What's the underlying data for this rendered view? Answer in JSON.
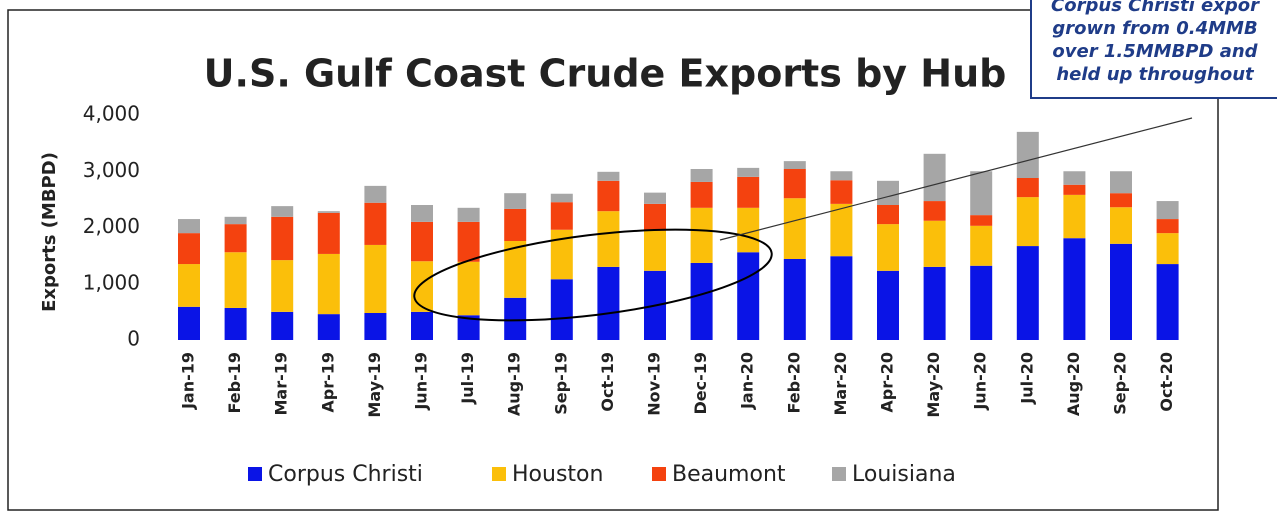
{
  "chart_data": {
    "type": "stacked_bar",
    "title": "U.S. Gulf Coast Crude Exports by Hub",
    "y_label": "Exports (MBPD)",
    "categories": [
      "Jan-19",
      "Feb-19",
      "Mar-19",
      "Apr-19",
      "May-19",
      "Jun-19",
      "Jul-19",
      "Aug-19",
      "Sep-19",
      "Oct-19",
      "Nov-19",
      "Dec-19",
      "Jan-20",
      "Feb-20",
      "Mar-20",
      "Apr-20",
      "May-20",
      "Jun-20",
      "Jul-20",
      "Aug-20",
      "Sep-20",
      "Oct-20"
    ],
    "series": [
      {
        "name": "Corpus Christi",
        "color": "#0a14e6",
        "values": [
          590,
          570,
          500,
          460,
          480,
          500,
          440,
          750,
          1080,
          1300,
          1230,
          1370,
          1560,
          1440,
          1490,
          1230,
          1300,
          1320,
          1670,
          1810,
          1710,
          1350
        ]
      },
      {
        "name": "Houston",
        "color": "#fbbf0a",
        "values": [
          760,
          990,
          920,
          1070,
          1210,
          900,
          950,
          1010,
          880,
          990,
          710,
          980,
          790,
          1080,
          930,
          830,
          820,
          710,
          870,
          770,
          650,
          550
        ]
      },
      {
        "name": "Beaumont",
        "color": "#f4420f",
        "values": [
          550,
          500,
          770,
          730,
          750,
          700,
          710,
          570,
          490,
          540,
          480,
          460,
          550,
          520,
          420,
          340,
          350,
          190,
          340,
          180,
          250,
          250
        ]
      },
      {
        "name": "Louisiana",
        "color": "#a6a6a6",
        "values": [
          250,
          130,
          190,
          30,
          300,
          300,
          250,
          280,
          150,
          160,
          200,
          230,
          160,
          140,
          160,
          430,
          840,
          780,
          820,
          240,
          390,
          320
        ]
      }
    ],
    "ylim": [
      0,
      4000
    ],
    "yticks": [
      0,
      {
        "value": 1000,
        "label": "1,000"
      },
      {
        "value": 2000,
        "label": "2,000"
      },
      {
        "value": 3000,
        "label": "3,000"
      },
      {
        "value": 4000,
        "label": "4,000"
      }
    ],
    "annotation": [
      "Corpus Christi expor",
      "grown from 0.4MMB",
      "over 1.5MMBPD and",
      "held up throughout"
    ]
  }
}
